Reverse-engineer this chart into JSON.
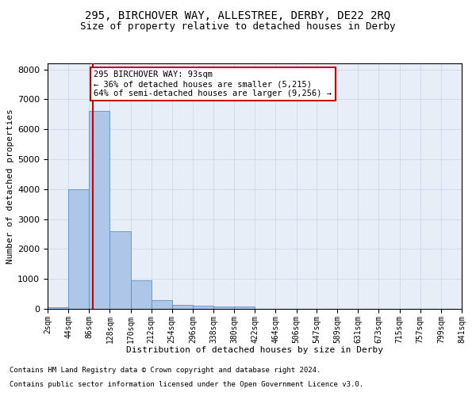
{
  "title1": "295, BIRCHOVER WAY, ALLESTREE, DERBY, DE22 2RQ",
  "title2": "Size of property relative to detached houses in Derby",
  "xlabel": "Distribution of detached houses by size in Derby",
  "ylabel": "Number of detached properties",
  "footnote1": "Contains HM Land Registry data © Crown copyright and database right 2024.",
  "footnote2": "Contains public sector information licensed under the Open Government Licence v3.0.",
  "bin_edges": [
    2,
    44,
    86,
    128,
    170,
    212,
    254,
    296,
    338,
    380,
    422,
    464,
    506,
    547,
    589,
    631,
    673,
    715,
    757,
    799,
    841
  ],
  "bar_values": [
    55,
    4000,
    6600,
    2600,
    950,
    300,
    130,
    110,
    85,
    80,
    0,
    0,
    0,
    0,
    0,
    0,
    0,
    0,
    0,
    0
  ],
  "bar_color": "#aec6e8",
  "bar_edge_color": "#5a8fc0",
  "grid_color": "#c8d4e8",
  "background_color": "#e8eef8",
  "ylim": [
    0,
    8200
  ],
  "property_sqm": 93,
  "property_line_color": "#cc0000",
  "annotation_line1": "295 BIRCHOVER WAY: 93sqm",
  "annotation_line2": "← 36% of detached houses are smaller (5,215)",
  "annotation_line3": "64% of semi-detached houses are larger (9,256) →",
  "annotation_box_color": "#ffffff",
  "annotation_box_edge_color": "#cc0000",
  "title1_fontsize": 10,
  "title2_fontsize": 9,
  "xlabel_fontsize": 8,
  "ylabel_fontsize": 8,
  "tick_fontsize": 7,
  "annotation_fontsize": 7.5,
  "footnote_fontsize": 6.5
}
